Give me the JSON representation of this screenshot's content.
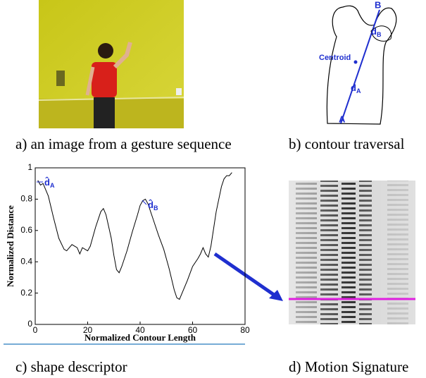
{
  "captions": {
    "a": "a) an image from a gesture sequence",
    "b": "b) contour traversal",
    "c": "c) shape descriptor",
    "d": "d) Motion Signature"
  },
  "contour_labels": {
    "B": "B",
    "A": "A",
    "centroid": "Centroid",
    "dB": {
      "base": "d",
      "sub": "B"
    },
    "dA": {
      "base": "d",
      "sub": "A"
    }
  },
  "chart_data": {
    "type": "line",
    "x_label": "Normalized Contour Length",
    "y_label": "Normalized Distance",
    "annotations": [
      {
        "base": "d̂",
        "sub": "A"
      },
      {
        "base": "d̂",
        "sub": "B"
      }
    ],
    "x": [
      1,
      2,
      3,
      5,
      7,
      9,
      11,
      12,
      14,
      16,
      17,
      18,
      20,
      21,
      23,
      25,
      26,
      27,
      29,
      30,
      31,
      32,
      33,
      35,
      37,
      39,
      40,
      41,
      42,
      43,
      45,
      47,
      49,
      51,
      53,
      54,
      55,
      56,
      58,
      60,
      62,
      63,
      64,
      65,
      66,
      67,
      69,
      71,
      72,
      73,
      74,
      75
    ],
    "values": [
      0.92,
      0.89,
      0.9,
      0.82,
      0.68,
      0.55,
      0.48,
      0.47,
      0.51,
      0.49,
      0.45,
      0.49,
      0.47,
      0.5,
      0.62,
      0.72,
      0.74,
      0.7,
      0.55,
      0.44,
      0.35,
      0.33,
      0.37,
      0.47,
      0.59,
      0.7,
      0.76,
      0.79,
      0.8,
      0.77,
      0.67,
      0.57,
      0.48,
      0.36,
      0.22,
      0.17,
      0.16,
      0.2,
      0.28,
      0.37,
      0.42,
      0.45,
      0.49,
      0.45,
      0.43,
      0.5,
      0.72,
      0.88,
      0.93,
      0.95,
      0.95,
      0.97
    ],
    "color": "#000000",
    "xlim": [
      0,
      80
    ],
    "ylim": [
      0,
      1
    ],
    "xticks": [
      0,
      20,
      40,
      60,
      80
    ],
    "yticks": [
      0,
      0.2,
      0.4,
      0.6,
      0.8,
      1
    ]
  }
}
